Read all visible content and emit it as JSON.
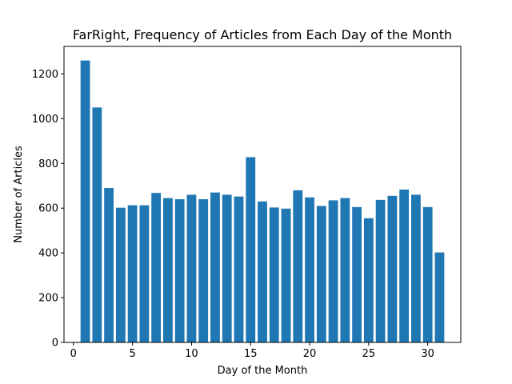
{
  "chart_data": {
    "type": "bar",
    "title": "FarRight, Frequency of Articles from Each Day of the Month",
    "xlabel": "Day of the Month",
    "ylabel": "Number of Articles",
    "x": [
      1,
      2,
      3,
      4,
      5,
      6,
      7,
      8,
      9,
      10,
      11,
      12,
      13,
      14,
      15,
      16,
      17,
      18,
      19,
      20,
      21,
      22,
      23,
      24,
      25,
      26,
      27,
      28,
      29,
      30,
      31
    ],
    "values": [
      1260,
      1050,
      690,
      602,
      613,
      613,
      668,
      645,
      640,
      660,
      640,
      670,
      660,
      652,
      828,
      630,
      603,
      598,
      680,
      648,
      610,
      635,
      645,
      605,
      555,
      637,
      655,
      683,
      660,
      605,
      402
    ],
    "xlim": [
      -0.8,
      32.8
    ],
    "ylim": [
      0,
      1323
    ],
    "x_ticks": [
      0,
      5,
      10,
      15,
      20,
      25,
      30
    ],
    "y_ticks": [
      0,
      200,
      400,
      600,
      800,
      1000,
      1200
    ],
    "x_tick_labels": [
      "0",
      "5",
      "10",
      "15",
      "20",
      "25",
      "30"
    ],
    "y_tick_labels": [
      "0",
      "200",
      "400",
      "600",
      "800",
      "1000",
      "1200"
    ],
    "bar_color": "#1f77b4",
    "grid": false,
    "legend": "none"
  }
}
